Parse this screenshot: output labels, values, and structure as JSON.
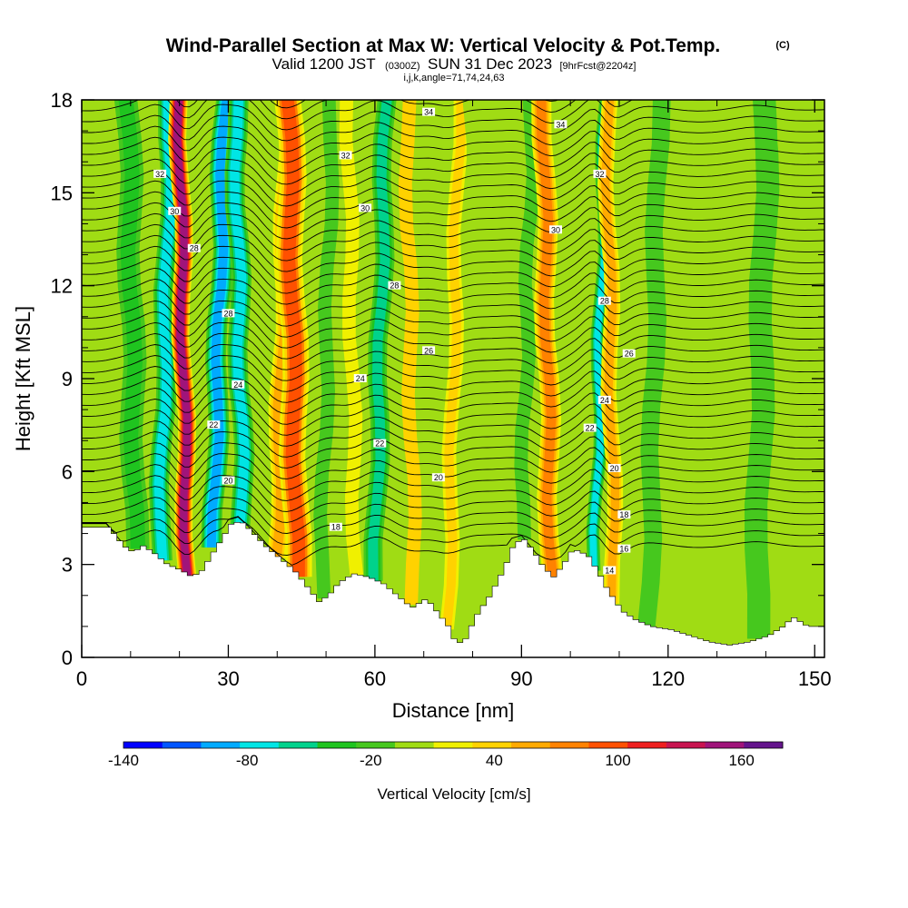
{
  "title": {
    "main": "Wind-Parallel Section at Max W: Vertical Velocity & Pot.Temp.",
    "mark": "(C)",
    "valid_prefix": "Valid 1200 JST",
    "valid_utc": "(0300Z)",
    "valid_date": "SUN 31 Dec 2023",
    "fcst": "[9hrFcst@2204z]",
    "indices": "i,j,k,angle=71,74,24,63"
  },
  "chart_data": {
    "type": "heatmap",
    "xlabel": "Distance [nm]",
    "ylabel": "Height [Kft MSL]",
    "xlim": [
      0,
      152
    ],
    "ylim": [
      0,
      18
    ],
    "x_ticks": [
      "0",
      "30",
      "60",
      "90",
      "120",
      "150"
    ],
    "y_ticks": [
      "0",
      "3",
      "6",
      "9",
      "12",
      "15",
      "18"
    ],
    "colorbar": {
      "label": "Vertical Velocity [cm/s]",
      "tick_labels": [
        "-140",
        "-80",
        "-20",
        "40",
        "100",
        "160"
      ],
      "tick_values": [
        -140,
        -80,
        -20,
        40,
        100,
        160
      ],
      "min": -140,
      "max": 180,
      "colors": [
        "#0000ff",
        "#0055ff",
        "#00aaff",
        "#00e5e5",
        "#00d28c",
        "#1fc41f",
        "#46c81e",
        "#a0dc14",
        "#f0f000",
        "#ffd200",
        "#ffaa00",
        "#ff8200",
        "#ff5000",
        "#ee1e1e",
        "#c81450",
        "#a0147a",
        "#64148c"
      ]
    },
    "bands": [
      {
        "x": 3,
        "w": 4,
        "value": 10
      },
      {
        "x": 11,
        "w": 4,
        "value": -30
      },
      {
        "x": 16,
        "w": 3,
        "value": -80
      },
      {
        "x": 21.5,
        "w": 2.5,
        "value": 160
      },
      {
        "x": 27,
        "w": 3,
        "value": -85
      },
      {
        "x": 33,
        "w": 3,
        "value": -70
      },
      {
        "x": 40,
        "w": 3,
        "value": 60
      },
      {
        "x": 44,
        "w": 4,
        "value": 90
      },
      {
        "x": 49,
        "w": 3,
        "value": -20
      },
      {
        "x": 56,
        "w": 3,
        "value": 20
      },
      {
        "x": 60,
        "w": 3,
        "value": -60
      },
      {
        "x": 68,
        "w": 3,
        "value": 30
      },
      {
        "x": 75,
        "w": 2.5,
        "value": 40
      },
      {
        "x": 81,
        "w": 3,
        "value": 0
      },
      {
        "x": 90,
        "w": 3,
        "value": -10
      },
      {
        "x": 96,
        "w": 3,
        "value": 80
      },
      {
        "x": 105,
        "w": 2,
        "value": -80
      },
      {
        "x": 109,
        "w": 2.5,
        "value": 60
      },
      {
        "x": 116,
        "w": 4,
        "value": -20
      },
      {
        "x": 126,
        "w": 5,
        "value": 10
      },
      {
        "x": 138,
        "w": 4,
        "value": -25
      },
      {
        "x": 146,
        "w": 4,
        "value": 5
      }
    ],
    "terrain": [
      [
        0,
        4.2
      ],
      [
        5,
        4.2
      ],
      [
        8,
        3.6
      ],
      [
        10,
        3.4
      ],
      [
        12,
        3.6
      ],
      [
        14,
        3.4
      ],
      [
        17,
        3.0
      ],
      [
        20,
        2.8
      ],
      [
        22,
        2.6
      ],
      [
        24,
        2.8
      ],
      [
        26,
        3.3
      ],
      [
        28,
        3.8
      ],
      [
        30,
        4.3
      ],
      [
        32,
        4.4
      ],
      [
        34,
        4.1
      ],
      [
        37,
        3.6
      ],
      [
        40,
        3.2
      ],
      [
        43,
        2.8
      ],
      [
        46,
        2.2
      ],
      [
        48,
        1.8
      ],
      [
        50,
        2.0
      ],
      [
        52,
        2.4
      ],
      [
        55,
        2.7
      ],
      [
        58,
        2.6
      ],
      [
        61,
        2.4
      ],
      [
        64,
        2.0
      ],
      [
        67,
        1.6
      ],
      [
        70,
        1.9
      ],
      [
        72,
        1.5
      ],
      [
        75,
        0.9
      ],
      [
        76,
        0.4
      ],
      [
        78,
        0.6
      ],
      [
        80,
        1.3
      ],
      [
        83,
        2.0
      ],
      [
        86,
        2.9
      ],
      [
        88,
        3.7
      ],
      [
        90,
        3.8
      ],
      [
        92,
        3.4
      ],
      [
        94,
        2.9
      ],
      [
        96,
        2.6
      ],
      [
        98,
        3.0
      ],
      [
        100,
        3.5
      ],
      [
        103,
        3.3
      ],
      [
        105,
        2.8
      ],
      [
        107,
        2.2
      ],
      [
        110,
        1.5
      ],
      [
        113,
        1.2
      ],
      [
        116,
        1.0
      ],
      [
        120,
        0.9
      ],
      [
        124,
        0.7
      ],
      [
        128,
        0.5
      ],
      [
        132,
        0.4
      ],
      [
        136,
        0.5
      ],
      [
        140,
        0.7
      ],
      [
        143,
        1.0
      ],
      [
        145,
        1.3
      ],
      [
        148,
        1.0
      ],
      [
        152,
        1.0
      ]
    ],
    "theta_contour_labels": [
      "14",
      "16",
      "18",
      "20",
      "22",
      "24",
      "26",
      "28",
      "30",
      "32",
      "34"
    ],
    "theta_range": [
      14,
      36
    ]
  }
}
